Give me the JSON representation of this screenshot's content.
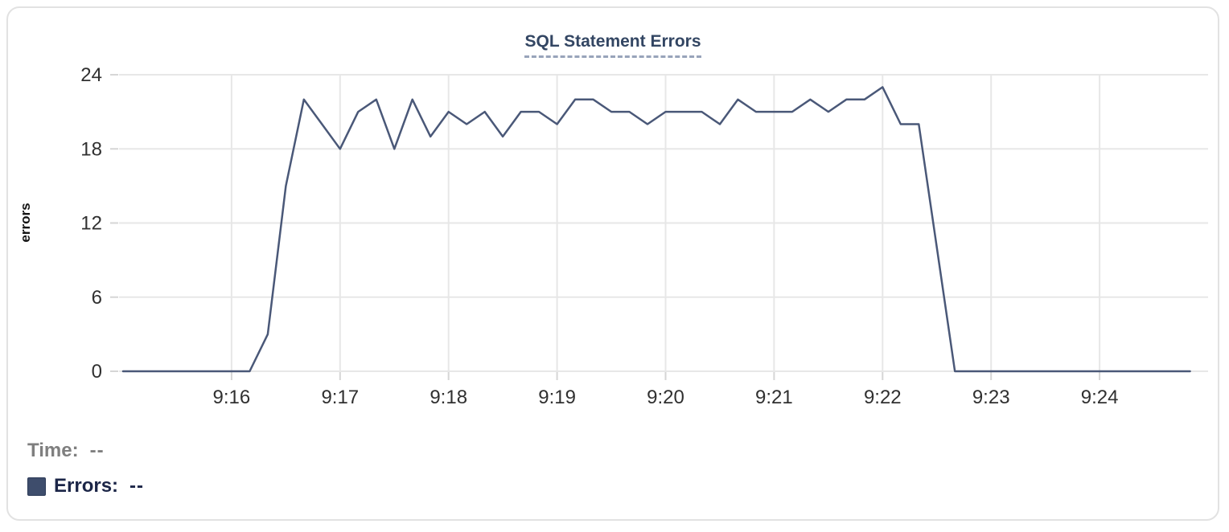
{
  "chart": {
    "title": "SQL Statement Errors"
  },
  "tooltip": {
    "time_label": "Time:",
    "time_value": "--",
    "errors_label": "Errors:",
    "errors_value": "--",
    "series_color": "#3e4d6c"
  },
  "colors": {
    "line": "#4a5878",
    "grid": "#e7e7e7",
    "tick": "#d6d6d6",
    "tick_text": "#303030",
    "title": "#334663"
  },
  "chart_data": {
    "type": "line",
    "title": "SQL Statement Errors",
    "xlabel": "",
    "ylabel": "errors",
    "series_name": "Errors",
    "grid": true,
    "legend_position": "bottom-left",
    "ylim": [
      0,
      24
    ],
    "y_ticks": [
      0,
      6,
      12,
      18,
      24
    ],
    "xlim": [
      "9:15:00",
      "9:25:00"
    ],
    "x_tick_labels": [
      "9:16",
      "9:17",
      "9:18",
      "9:19",
      "9:20",
      "9:21",
      "9:22",
      "9:23",
      "9:24"
    ],
    "x_interval_seconds": 10,
    "x": [
      "9:15:00",
      "9:15:10",
      "9:15:20",
      "9:15:30",
      "9:15:40",
      "9:15:50",
      "9:16:00",
      "9:16:10",
      "9:16:20",
      "9:16:30",
      "9:16:40",
      "9:16:50",
      "9:17:00",
      "9:17:10",
      "9:17:20",
      "9:17:30",
      "9:17:40",
      "9:17:50",
      "9:18:00",
      "9:18:10",
      "9:18:20",
      "9:18:30",
      "9:18:40",
      "9:18:50",
      "9:19:00",
      "9:19:10",
      "9:19:20",
      "9:19:30",
      "9:19:40",
      "9:19:50",
      "9:20:00",
      "9:20:10",
      "9:20:20",
      "9:20:30",
      "9:20:40",
      "9:20:50",
      "9:21:00",
      "9:21:10",
      "9:21:20",
      "9:21:30",
      "9:21:40",
      "9:21:50",
      "9:22:00",
      "9:22:10",
      "9:22:20",
      "9:22:30",
      "9:22:40",
      "9:22:50",
      "9:23:00",
      "9:23:10",
      "9:23:20",
      "9:23:30",
      "9:23:40",
      "9:23:50",
      "9:24:00",
      "9:24:10",
      "9:24:20",
      "9:24:30",
      "9:24:40",
      "9:24:50"
    ],
    "values": [
      0,
      0,
      0,
      0,
      0,
      0,
      0,
      0,
      3,
      15,
      22,
      20,
      18,
      21,
      22,
      18,
      22,
      19,
      21,
      20,
      21,
      19,
      21,
      21,
      20,
      22,
      22,
      21,
      21,
      20,
      21,
      21,
      21,
      20,
      22,
      21,
      21,
      21,
      22,
      21,
      22,
      22,
      23,
      20,
      20,
      10,
      0,
      0,
      0,
      0,
      0,
      0,
      0,
      0,
      0,
      0,
      0,
      0,
      0,
      0
    ]
  }
}
